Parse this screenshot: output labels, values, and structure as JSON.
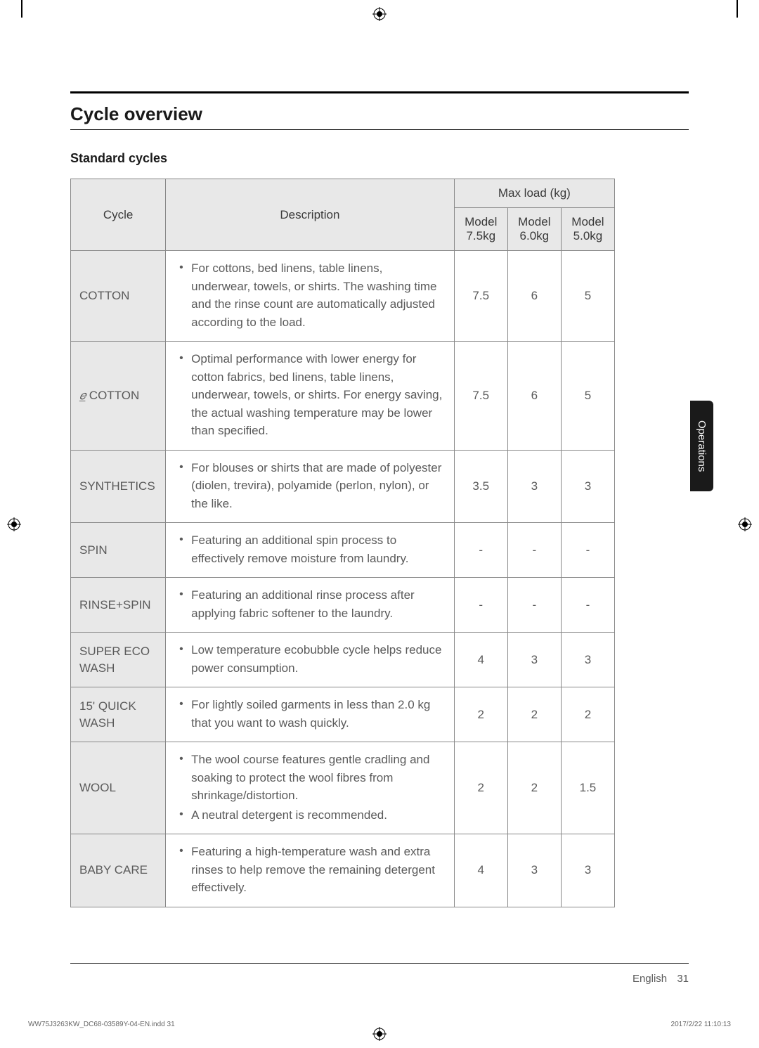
{
  "section": {
    "title": "Cycle overview",
    "subtitle": "Standard cycles"
  },
  "table": {
    "headers": {
      "cycle": "Cycle",
      "description": "Description",
      "max_load": "Max load (kg)",
      "model_75": "Model 7.5kg",
      "model_60": "Model 6.0kg",
      "model_50": "Model 5.0kg"
    },
    "rows": [
      {
        "cycle": "COTTON",
        "items": [
          "For cottons, bed linens, table linens, underwear, towels, or shirts. The washing time and the rinse count are automatically adjusted according to the load."
        ],
        "load_75": "7.5",
        "load_60": "6",
        "load_50": "5"
      },
      {
        "cycle_prefix": "𝑒̲",
        "cycle": " COTTON",
        "items": [
          "Optimal performance with lower energy for cotton fabrics, bed linens, table linens, underwear, towels, or shirts. For energy saving, the actual washing temperature may be lower than specified."
        ],
        "load_75": "7.5",
        "load_60": "6",
        "load_50": "5"
      },
      {
        "cycle": "SYNTHETICS",
        "items": [
          "For blouses or shirts that are made of polyester (diolen, trevira), polyamide (perlon, nylon), or the like."
        ],
        "load_75": "3.5",
        "load_60": "3",
        "load_50": "3"
      },
      {
        "cycle": "SPIN",
        "items": [
          "Featuring an additional spin process to effectively remove moisture from laundry."
        ],
        "load_75": "-",
        "load_60": "-",
        "load_50": "-"
      },
      {
        "cycle": "RINSE+SPIN",
        "items": [
          "Featuring an additional rinse process after applying fabric softener to the laundry."
        ],
        "load_75": "-",
        "load_60": "-",
        "load_50": "-"
      },
      {
        "cycle": "SUPER ECO WASH",
        "items": [
          "Low temperature ecobubble cycle helps reduce power consumption."
        ],
        "load_75": "4",
        "load_60": "3",
        "load_50": "3"
      },
      {
        "cycle": "15' QUICK WASH",
        "items": [
          "For lightly soiled garments in less than 2.0 kg that you want to wash quickly."
        ],
        "load_75": "2",
        "load_60": "2",
        "load_50": "2"
      },
      {
        "cycle": "WOOL",
        "items": [
          "The wool course features gentle cradling and soaking to protect the wool fibres from shrinkage/distortion.",
          "A neutral detergent is recommended."
        ],
        "load_75": "2",
        "load_60": "2",
        "load_50": "1.5"
      },
      {
        "cycle": "BABY CARE",
        "items": [
          "Featuring a high-temperature wash and extra rinses to help remove the remaining detergent effectively."
        ],
        "load_75": "4",
        "load_60": "3",
        "load_50": "3"
      }
    ]
  },
  "side_tab": "Operations",
  "footer": {
    "language": "English",
    "page": "31",
    "print_left": "WW75J3263KW_DC68-03589Y-04-EN.indd   31",
    "print_right": "2017/2/22   11:10:13"
  }
}
